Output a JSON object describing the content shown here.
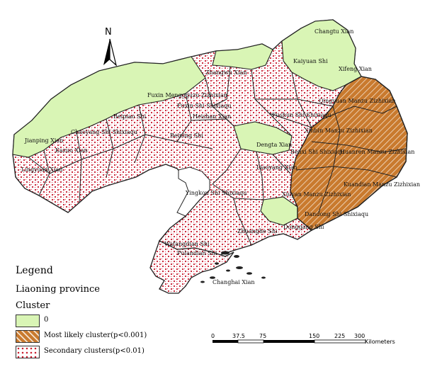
{
  "map": {
    "north_label": "N",
    "regions": [
      {
        "name": "Changtu Xian"
      },
      {
        "name": "Kaiyuan Shi"
      },
      {
        "name": "Xifeng Xian"
      },
      {
        "name": "Zhangwu Xian"
      },
      {
        "name": "Fuxin Menggguzu Zizhixian"
      },
      {
        "name": "Fuxin Shi Shixiaqu"
      },
      {
        "name": "Beipiao Shi"
      },
      {
        "name": "Heishan Xian"
      },
      {
        "name": "Jianping Xian"
      },
      {
        "name": "Chaoyang Shi Shixiaqu"
      },
      {
        "name": "Beining Shi"
      },
      {
        "name": "Fushun Shi Shixiaqu"
      },
      {
        "name": "Qingyuan Manzu Zizhixian"
      },
      {
        "name": "Kazuo Xian"
      },
      {
        "name": "Lingyuan Xian"
      },
      {
        "name": "Xinbin Manzu Zizhixian"
      },
      {
        "name": "Dengta Xian"
      },
      {
        "name": "Liaoyang Xian"
      },
      {
        "name": "Benxi Shi Shixiaqu"
      },
      {
        "name": "Huanren Manzu Zizhixian"
      },
      {
        "name": "Yingkou Shi Shixiaqu"
      },
      {
        "name": "Kuandian Manzu Zizhixian"
      },
      {
        "name": "Xiuyan Manzu Zizhixian"
      },
      {
        "name": "Dandong Shi Shixiaqu"
      },
      {
        "name": "Donggang Shi"
      },
      {
        "name": "Zhuanghe Shi"
      },
      {
        "name": "Wafangdian Shi"
      },
      {
        "name": "Pulandian Shi"
      },
      {
        "name": "Changhai Xian"
      }
    ]
  },
  "legend": {
    "title": "Legend",
    "subtitle": "Liaoning province",
    "cluster_heading": "Cluster",
    "items": [
      {
        "label": "0",
        "color": "#d9f5b5"
      },
      {
        "label": "Most likely cluster(p<0.001)",
        "color": "#c97a2e"
      },
      {
        "label": "Secondary clusters(p<0.01)",
        "color": "#c7162a"
      }
    ]
  },
  "scale_bar": {
    "ticks": [
      "0",
      "37.5",
      "75",
      "150",
      "225",
      "300"
    ],
    "unit": "Kilometers"
  }
}
